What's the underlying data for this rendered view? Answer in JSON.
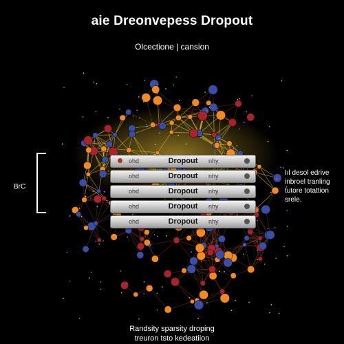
{
  "title": "aie Dreonvepess Dropout",
  "subtitle": "Olcectione | cansion",
  "layers": [
    {
      "left": "ohd",
      "center": "Dropout",
      "right": "nhy"
    },
    {
      "left": "ohd",
      "center": "Dropout",
      "right": "nhy"
    },
    {
      "left": "ohd",
      "center": "Dropout",
      "right": "nhy"
    },
    {
      "left": "ohd",
      "center": "Dropout",
      "right": "nhy"
    },
    {
      "left": "ohd",
      "center": "Dropout",
      "right": "nhy"
    }
  ],
  "bracket_label": "BrC",
  "side_text": [
    "Iıl desol edrive",
    "inbroel tranling",
    "tutore totattion",
    "srele."
  ],
  "footer": [
    "Randsity sparsity droping",
    "treuron tsto kedeatiion"
  ],
  "colors": {
    "background": "#000000",
    "node_orange": "#f28a1e",
    "node_blue": "#3a4ea8",
    "node_red": "#a8242a",
    "edge_glow": "#e8c232"
  }
}
